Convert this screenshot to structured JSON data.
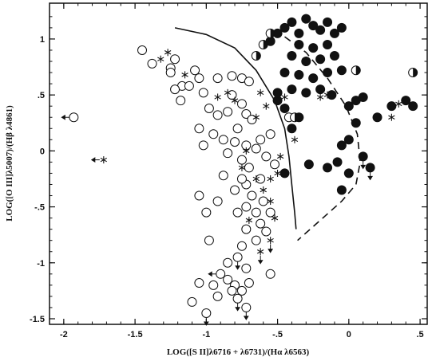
{
  "chart_data": {
    "type": "scatter",
    "title": "",
    "xlabel": "LOG([S II]λ6716 + λ6731)/(Hα λ6563)",
    "ylabel": "LOG([O III]λ5007)/(Hβ λ4861)",
    "xlim": [
      -2.1,
      0.55
    ],
    "ylim": [
      -1.55,
      1.32
    ],
    "x_ticks": [
      {
        "value": -2,
        "label": "-2"
      },
      {
        "value": -1.5,
        "label": "-1.5"
      },
      {
        "value": -1,
        "label": "-1"
      },
      {
        "value": -0.5,
        "label": "-.5"
      },
      {
        "value": 0,
        "label": "0"
      },
      {
        "value": 0.5,
        "label": ".5"
      }
    ],
    "y_ticks": [
      {
        "value": 1,
        "label": "1"
      },
      {
        "value": 0.5,
        "label": ".5"
      },
      {
        "value": 0,
        "label": "0"
      },
      {
        "value": -0.5,
        "label": "-.5"
      },
      {
        "value": -1,
        "label": "-1"
      },
      {
        "value": -1.5,
        "label": "-1.5"
      }
    ],
    "grid": false,
    "colors": {
      "ink": "#111111",
      "background": "#ffffff"
    },
    "series": [
      {
        "marker": "open-circle",
        "points": [
          [
            -1.93,
            0.3
          ],
          [
            -1.38,
            0.78
          ],
          [
            -1.45,
            0.9
          ],
          [
            -1.22,
            0.82
          ],
          [
            -1.25,
            0.74
          ],
          [
            -1.17,
            0.58
          ],
          [
            -1.22,
            0.55
          ],
          [
            -1.05,
            0.65
          ],
          [
            -1.02,
            0.52
          ],
          [
            -0.92,
            0.65
          ],
          [
            -0.82,
            0.67
          ],
          [
            -0.75,
            0.65
          ],
          [
            -0.7,
            0.62
          ],
          [
            -1.18,
            0.45
          ],
          [
            -1.12,
            0.58
          ],
          [
            -1.08,
            0.72
          ],
          [
            -0.98,
            0.38
          ],
          [
            -0.92,
            0.32
          ],
          [
            -0.85,
            0.35
          ],
          [
            -0.72,
            0.33
          ],
          [
            -0.68,
            0.28
          ],
          [
            -0.95,
            0.15
          ],
          [
            -0.88,
            0.1
          ],
          [
            -0.8,
            0.08
          ],
          [
            -0.72,
            0.05
          ],
          [
            -0.65,
            0.02
          ],
          [
            -1.05,
            0.2
          ],
          [
            -0.78,
            0.2
          ],
          [
            -0.55,
            0.15
          ],
          [
            -0.62,
            0.1
          ],
          [
            -0.85,
            -0.02
          ],
          [
            -0.75,
            -0.08
          ],
          [
            -0.7,
            -0.15
          ],
          [
            -0.58,
            -0.05
          ],
          [
            -0.52,
            -0.12
          ],
          [
            -0.62,
            -0.25
          ],
          [
            -0.72,
            -0.3
          ],
          [
            -0.68,
            -0.4
          ],
          [
            -0.6,
            -0.45
          ],
          [
            -0.65,
            -0.55
          ],
          [
            -0.72,
            -0.5
          ],
          [
            -0.55,
            -0.55
          ],
          [
            -0.62,
            -0.65
          ],
          [
            -0.58,
            -0.72
          ],
          [
            -0.72,
            -0.7
          ],
          [
            -0.75,
            -0.85
          ],
          [
            -0.65,
            -0.8
          ],
          [
            -0.78,
            -0.95
          ],
          [
            -0.85,
            -1.0
          ],
          [
            -0.72,
            -1.05
          ],
          [
            -0.9,
            -1.1
          ],
          [
            -0.85,
            -1.15
          ],
          [
            -0.8,
            -1.2
          ],
          [
            -0.75,
            -1.25
          ],
          [
            -0.78,
            -1.32
          ],
          [
            -0.72,
            -1.4
          ],
          [
            -0.82,
            -1.25
          ],
          [
            -0.7,
            -1.18
          ],
          [
            -0.92,
            -1.3
          ],
          [
            -1.1,
            -1.35
          ],
          [
            -1.0,
            -1.45
          ],
          [
            -0.95,
            -1.2
          ],
          [
            -1.05,
            -1.18
          ],
          [
            -0.55,
            -1.1
          ],
          [
            -0.98,
            -0.8
          ],
          [
            -1.0,
            -0.55
          ],
          [
            -1.05,
            -0.4
          ],
          [
            -0.92,
            -0.45
          ],
          [
            -0.78,
            -0.55
          ],
          [
            -0.8,
            -0.35
          ],
          [
            -0.88,
            -0.22
          ],
          [
            -0.75,
            -0.25
          ],
          [
            -1.02,
            0.05
          ],
          [
            -0.75,
            0.42
          ],
          [
            -0.82,
            0.5
          ],
          [
            -1.25,
            0.7
          ],
          [
            -0.42,
            0.3
          ]
        ]
      },
      {
        "marker": "filled-circle",
        "points": [
          [
            -0.45,
            1.1
          ],
          [
            -0.4,
            1.15
          ],
          [
            -0.35,
            1.05
          ],
          [
            -0.3,
            1.18
          ],
          [
            -0.25,
            1.12
          ],
          [
            -0.2,
            1.08
          ],
          [
            -0.15,
            1.15
          ],
          [
            -0.1,
            1.05
          ],
          [
            -0.05,
            1.1
          ],
          [
            -0.35,
            0.95
          ],
          [
            -0.25,
            0.92
          ],
          [
            -0.15,
            0.95
          ],
          [
            -0.4,
            0.85
          ],
          [
            -0.3,
            0.8
          ],
          [
            -0.2,
            0.82
          ],
          [
            -0.1,
            0.85
          ],
          [
            -0.45,
            0.7
          ],
          [
            -0.35,
            0.68
          ],
          [
            -0.25,
            0.65
          ],
          [
            -0.15,
            0.7
          ],
          [
            -0.05,
            0.72
          ],
          [
            -0.4,
            0.55
          ],
          [
            -0.3,
            0.52
          ],
          [
            -0.2,
            0.55
          ],
          [
            -0.12,
            0.5
          ],
          [
            -0.5,
            1.05
          ],
          [
            -0.55,
            0.98
          ],
          [
            -0.5,
            0.45
          ],
          [
            -0.45,
            0.38
          ],
          [
            -0.35,
            0.3
          ],
          [
            0.0,
            0.4
          ],
          [
            0.05,
            0.45
          ],
          [
            0.1,
            0.48
          ],
          [
            0.2,
            0.3
          ],
          [
            0.05,
            0.25
          ],
          [
            0.0,
            0.1
          ],
          [
            -0.05,
            0.05
          ],
          [
            -0.08,
            -0.1
          ],
          [
            -0.15,
            -0.15
          ],
          [
            0.0,
            -0.2
          ],
          [
            -0.05,
            -0.35
          ],
          [
            0.1,
            -0.05
          ],
          [
            0.3,
            0.4
          ],
          [
            0.4,
            0.45
          ],
          [
            0.45,
            0.4
          ],
          [
            -0.28,
            -0.12
          ],
          [
            -0.5,
            0.52
          ],
          [
            0.15,
            -0.15
          ],
          [
            -0.4,
            0.2
          ],
          [
            -0.45,
            -0.2
          ]
        ]
      },
      {
        "marker": "half-filled-circle",
        "points": [
          [
            -0.55,
            1.05
          ],
          [
            -0.65,
            0.85
          ],
          [
            -0.38,
            0.3
          ],
          [
            0.05,
            0.72
          ],
          [
            0.45,
            0.7
          ],
          [
            -0.6,
            0.95
          ]
        ]
      },
      {
        "marker": "asterisk",
        "points": [
          [
            -1.72,
            -0.08
          ],
          [
            -1.27,
            0.88
          ],
          [
            -1.32,
            0.82
          ],
          [
            -1.15,
            0.68
          ],
          [
            -0.92,
            0.48
          ],
          [
            -0.85,
            0.52
          ],
          [
            -0.62,
            0.52
          ],
          [
            -0.58,
            0.4
          ],
          [
            -0.45,
            0.48
          ],
          [
            -0.8,
            0.45
          ],
          [
            -0.65,
            0.3
          ],
          [
            -0.55,
            -0.25
          ],
          [
            -0.75,
            -0.15
          ],
          [
            -0.5,
            -0.2
          ],
          [
            -0.55,
            -0.45
          ],
          [
            -0.65,
            -0.25
          ],
          [
            -0.6,
            -0.35
          ],
          [
            -0.52,
            -0.6
          ],
          [
            -0.7,
            -0.62
          ],
          [
            -0.62,
            -0.9
          ],
          [
            -0.55,
            -0.8
          ],
          [
            -0.48,
            -0.05
          ],
          [
            -0.38,
            0.1
          ],
          [
            -0.15,
            0.5
          ],
          [
            -0.2,
            0.48
          ],
          [
            0.35,
            0.42
          ],
          [
            0.3,
            0.3
          ],
          [
            -0.72,
            0.0
          ]
        ]
      }
    ],
    "arrows": [
      {
        "x": -1.93,
        "y": 0.3,
        "direction": "left"
      },
      {
        "x": -1.72,
        "y": -0.08,
        "direction": "left"
      },
      {
        "x": -0.78,
        "y": -1.32,
        "direction": "down"
      },
      {
        "x": -0.72,
        "y": -1.4,
        "direction": "down"
      },
      {
        "x": -1.0,
        "y": -1.45,
        "direction": "down"
      },
      {
        "x": -0.62,
        "y": -0.9,
        "direction": "down"
      },
      {
        "x": -0.55,
        "y": -0.8,
        "direction": "down"
      },
      {
        "x": 0.15,
        "y": -0.15,
        "direction": "down"
      },
      {
        "x": 0.1,
        "y": -0.05,
        "direction": "down"
      },
      {
        "x": -0.78,
        "y": -0.95,
        "direction": "down"
      },
      {
        "x": -0.9,
        "y": -1.1,
        "direction": "left"
      }
    ],
    "curves": [
      {
        "style": "solid",
        "points": [
          [
            -1.22,
            1.1
          ],
          [
            -1.0,
            1.04
          ],
          [
            -0.8,
            0.92
          ],
          [
            -0.65,
            0.72
          ],
          [
            -0.52,
            0.45
          ],
          [
            -0.45,
            0.2
          ],
          [
            -0.42,
            -0.05
          ],
          [
            -0.4,
            -0.3
          ],
          [
            -0.38,
            -0.55
          ],
          [
            -0.37,
            -0.7
          ]
        ]
      },
      {
        "style": "dashed",
        "points": [
          [
            -0.45,
            1.02
          ],
          [
            -0.3,
            0.88
          ],
          [
            -0.15,
            0.65
          ],
          [
            -0.02,
            0.4
          ],
          [
            0.06,
            0.15
          ],
          [
            0.08,
            -0.1
          ],
          [
            0.05,
            -0.3
          ],
          [
            -0.05,
            -0.45
          ],
          [
            -0.2,
            -0.62
          ],
          [
            -0.36,
            -0.8
          ]
        ]
      }
    ]
  }
}
